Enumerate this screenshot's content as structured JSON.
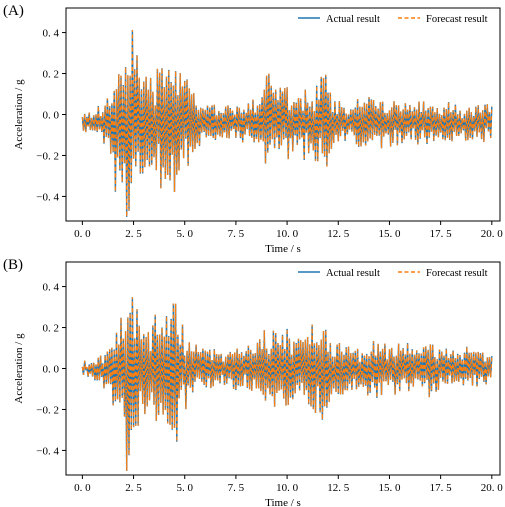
{
  "chart_data": [
    {
      "panel_label": "(A)",
      "type": "line",
      "xlabel": "Time / s",
      "ylabel": "Acceleration / g",
      "xlim": [
        -0.8,
        20.4
      ],
      "ylim": [
        -0.52,
        0.52
      ],
      "xticks": [
        "0. 0",
        "2. 5",
        "5. 0",
        "7. 5",
        "10. 0",
        "12. 5",
        "15. 0",
        "17. 5",
        "20. 0"
      ],
      "xtick_values": [
        0,
        2.5,
        5,
        7.5,
        10,
        12.5,
        15,
        17.5,
        20
      ],
      "yticks": [
        "0. 4",
        "0. 2",
        "0. 0",
        "−0. 2",
        "−0. 4"
      ],
      "ytick_values": [
        0.4,
        0.2,
        0.0,
        -0.2,
        -0.4
      ],
      "legend_position": "top-right",
      "series": [
        {
          "name": "Actual result",
          "style": "solid",
          "color": "#1f77b4"
        },
        {
          "name": "Forecast result",
          "style": "dashed",
          "color": "#ff7f0e"
        }
      ],
      "waveform": {
        "t": [
          0,
          0.3,
          0.6,
          0.9,
          1.1,
          1.3,
          1.5,
          1.7,
          1.85,
          2.0,
          2.15,
          2.3,
          2.45,
          2.6,
          2.8,
          3.0,
          3.2,
          3.4,
          3.6,
          3.8,
          4.0,
          4.2,
          4.4,
          4.6,
          4.8,
          5.0,
          5.2,
          5.4,
          5.6,
          5.8,
          6.0,
          6.5,
          7.0,
          7.5,
          8.0,
          8.5,
          8.8,
          9.0,
          9.2,
          9.5,
          10.0,
          10.5,
          11.0,
          11.5,
          11.9,
          12.2,
          12.5,
          13.0,
          13.5,
          14.0,
          14.5,
          15.0,
          15.5,
          16.0,
          16.5,
          17.0,
          17.5,
          18.0,
          18.5,
          19.0,
          19.5,
          20.0
        ],
        "env": [
          0.05,
          0.06,
          0.06,
          0.08,
          0.12,
          0.15,
          0.25,
          0.42,
          0.35,
          0.32,
          0.5,
          0.49,
          0.45,
          0.35,
          0.3,
          0.25,
          0.35,
          0.3,
          0.25,
          0.3,
          0.4,
          0.35,
          0.33,
          0.38,
          0.22,
          0.2,
          0.25,
          0.18,
          0.12,
          0.1,
          0.1,
          0.1,
          0.09,
          0.1,
          0.1,
          0.12,
          0.2,
          0.25,
          0.24,
          0.2,
          0.18,
          0.15,
          0.18,
          0.2,
          0.29,
          0.12,
          0.12,
          0.1,
          0.12,
          0.14,
          0.12,
          0.11,
          0.12,
          0.1,
          0.12,
          0.14,
          0.1,
          0.1,
          0.09,
          0.1,
          0.09,
          0.08
        ],
        "offset": -0.04,
        "seed": 3
      }
    },
    {
      "panel_label": "(B)",
      "type": "line",
      "xlabel": "Time / s",
      "ylabel": "Acceleration / g",
      "xlim": [
        -0.8,
        20.4
      ],
      "ylim": [
        -0.52,
        0.52
      ],
      "xticks": [
        "0. 0",
        "2. 5",
        "5. 0",
        "7. 5",
        "10. 0",
        "12. 5",
        "15. 0",
        "17. 5",
        "20. 0"
      ],
      "xtick_values": [
        0,
        2.5,
        5,
        7.5,
        10,
        12.5,
        15,
        17.5,
        20
      ],
      "yticks": [
        "0. 4",
        "0. 2",
        "0. 0",
        "−0. 2",
        "−0. 4"
      ],
      "ytick_values": [
        0.4,
        0.2,
        0.0,
        -0.2,
        -0.4
      ],
      "legend_position": "top-right",
      "series": [
        {
          "name": "Actual result",
          "style": "solid",
          "color": "#1f77b4"
        },
        {
          "name": "Forecast result",
          "style": "dashed",
          "color": "#ff7f0e"
        }
      ],
      "waveform": {
        "t": [
          0,
          0.3,
          0.6,
          0.9,
          1.1,
          1.3,
          1.5,
          1.7,
          1.85,
          2.0,
          2.15,
          2.3,
          2.45,
          2.6,
          2.8,
          3.0,
          3.2,
          3.4,
          3.6,
          3.8,
          4.0,
          4.2,
          4.4,
          4.6,
          4.8,
          5.0,
          5.2,
          5.4,
          5.6,
          5.8,
          6.0,
          6.5,
          7.0,
          7.5,
          8.0,
          8.5,
          8.8,
          9.0,
          9.2,
          9.5,
          10.0,
          10.5,
          11.0,
          11.5,
          11.9,
          12.2,
          12.5,
          13.0,
          13.5,
          14.0,
          14.5,
          15.0,
          15.5,
          16.0,
          16.5,
          17.0,
          17.5,
          18.0,
          18.5,
          19.0,
          19.5,
          20.0
        ],
        "env": [
          0.03,
          0.04,
          0.05,
          0.08,
          0.1,
          0.12,
          0.2,
          0.32,
          0.3,
          0.3,
          0.5,
          0.48,
          0.4,
          0.3,
          0.28,
          0.25,
          0.22,
          0.27,
          0.28,
          0.3,
          0.3,
          0.33,
          0.36,
          0.38,
          0.25,
          0.2,
          0.2,
          0.15,
          0.1,
          0.1,
          0.1,
          0.1,
          0.08,
          0.1,
          0.1,
          0.12,
          0.22,
          0.22,
          0.2,
          0.2,
          0.2,
          0.15,
          0.2,
          0.22,
          0.3,
          0.15,
          0.14,
          0.12,
          0.12,
          0.15,
          0.13,
          0.12,
          0.12,
          0.11,
          0.12,
          0.13,
          0.1,
          0.1,
          0.09,
          0.1,
          0.08,
          0.07
        ],
        "offset": 0.0,
        "seed": 11
      }
    }
  ]
}
